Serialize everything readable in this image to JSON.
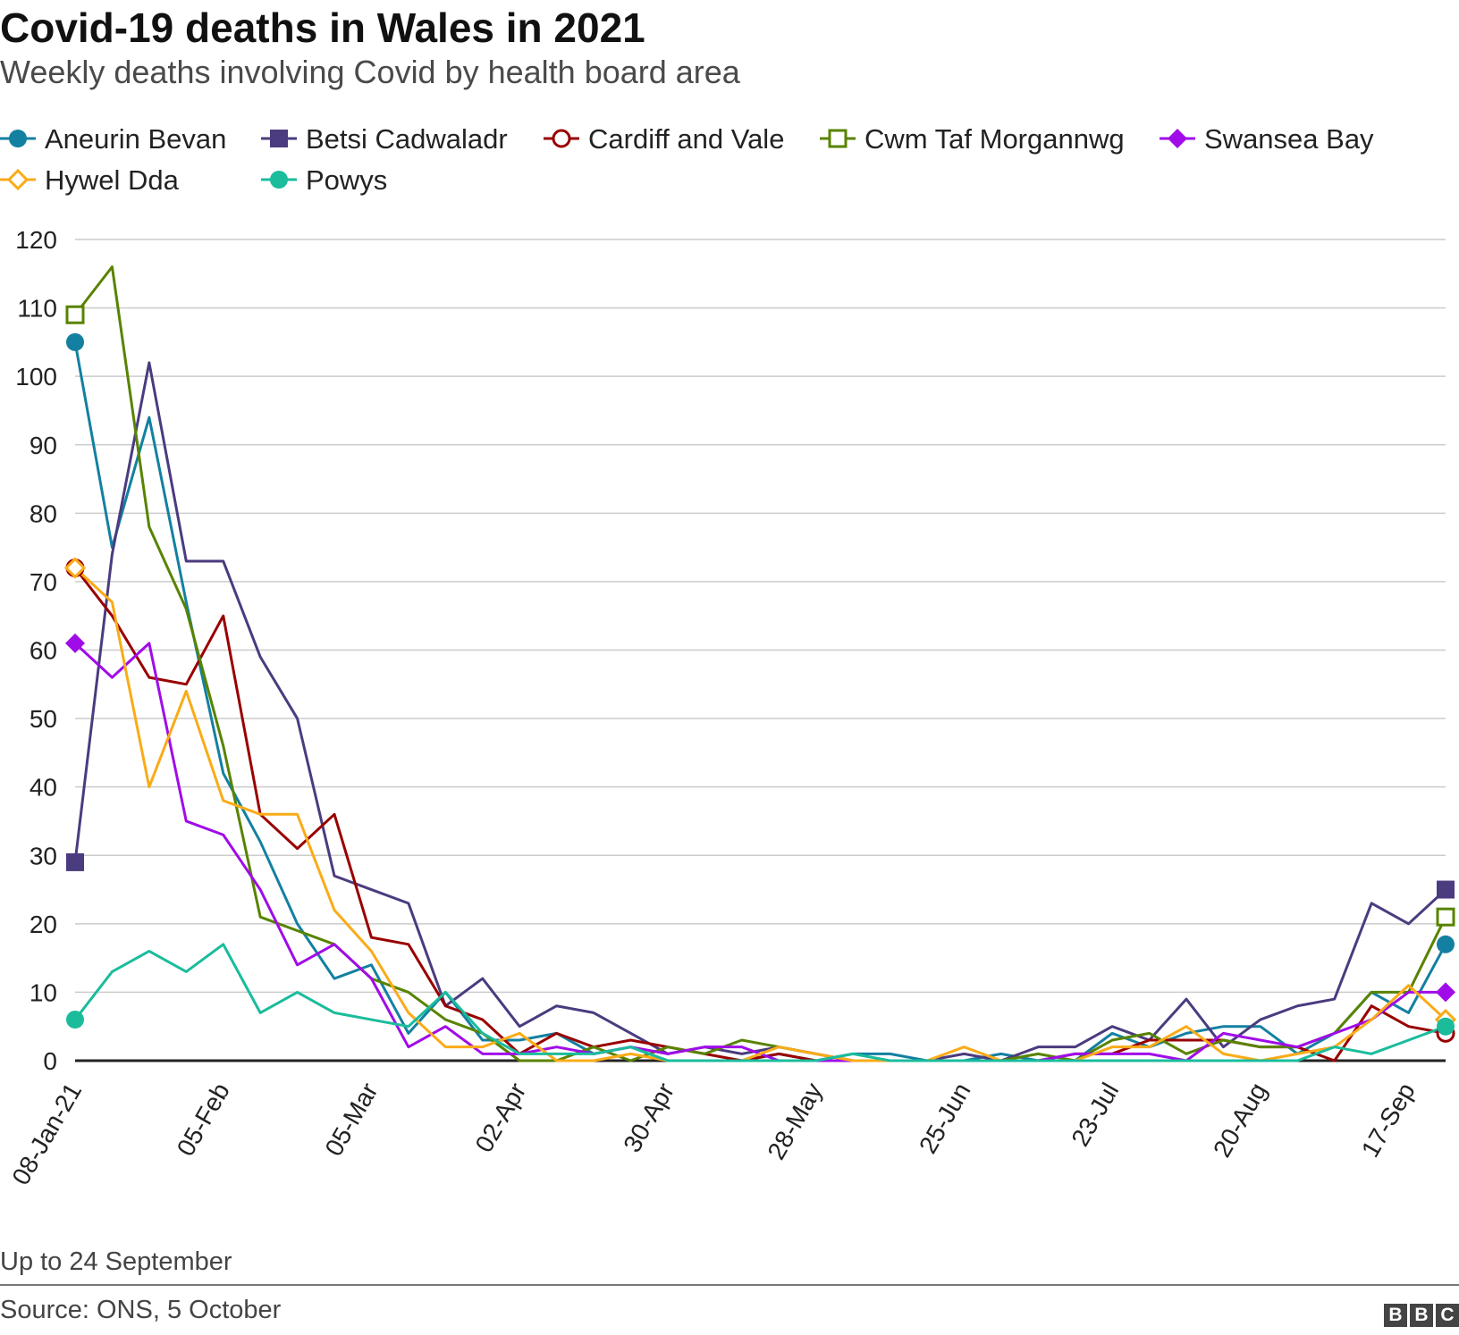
{
  "header": {
    "title": "Covid-19 deaths in Wales in 2021",
    "subtitle": "Weekly deaths involving Covid by health board area"
  },
  "footer": {
    "note": "Up to 24 September",
    "source": "Source: ONS, 5 October",
    "logo_letters": [
      "B",
      "B",
      "C"
    ]
  },
  "chart_data": {
    "type": "line",
    "title": "Covid-19 deaths in Wales in 2021",
    "subtitle": "Weekly deaths involving Covid by health board area",
    "xlabel": "",
    "ylabel": "",
    "ylim": [
      0,
      120
    ],
    "yticks": [
      0,
      10,
      20,
      30,
      40,
      50,
      60,
      70,
      80,
      90,
      100,
      110,
      120
    ],
    "grid": true,
    "legend_position": "top",
    "categories": [
      "08-Jan-21",
      "15-Jan",
      "22-Jan",
      "29-Jan",
      "05-Feb",
      "12-Feb",
      "19-Feb",
      "26-Feb",
      "05-Mar",
      "12-Mar",
      "19-Mar",
      "26-Mar",
      "02-Apr",
      "09-Apr",
      "16-Apr",
      "23-Apr",
      "30-Apr",
      "07-May",
      "14-May",
      "21-May",
      "28-May",
      "04-Jun",
      "11-Jun",
      "18-Jun",
      "25-Jun",
      "02-Jul",
      "09-Jul",
      "16-Jul",
      "23-Jul",
      "30-Jul",
      "06-Aug",
      "13-Aug",
      "20-Aug",
      "27-Aug",
      "03-Sep",
      "10-Sep",
      "17-Sep",
      "24-Sep"
    ],
    "xtick_labels": [
      {
        "index": 0,
        "label": "08-Jan-21"
      },
      {
        "index": 4,
        "label": "05-Feb"
      },
      {
        "index": 8,
        "label": "05-Mar"
      },
      {
        "index": 12,
        "label": "02-Apr"
      },
      {
        "index": 16,
        "label": "30-Apr"
      },
      {
        "index": 20,
        "label": "28-May"
      },
      {
        "index": 24,
        "label": "25-Jun"
      },
      {
        "index": 28,
        "label": "23-Jul"
      },
      {
        "index": 32,
        "label": "20-Aug"
      },
      {
        "index": 36,
        "label": "17-Sep"
      }
    ],
    "series": [
      {
        "name": "Aneurin Bevan",
        "color": "#1380A1",
        "marker": "circle",
        "values": [
          105,
          75,
          94,
          67,
          42,
          32,
          20,
          12,
          14,
          4,
          10,
          3,
          3,
          4,
          1,
          2,
          0,
          0,
          0,
          1,
          0,
          1,
          1,
          0,
          0,
          1,
          0,
          0,
          4,
          2,
          4,
          5,
          5,
          1,
          4,
          10,
          7,
          17
        ]
      },
      {
        "name": "Betsi Cadwaladr",
        "color": "#4B3B7F",
        "marker": "square",
        "values": [
          29,
          74,
          102,
          73,
          73,
          59,
          50,
          27,
          25,
          23,
          8,
          12,
          5,
          8,
          7,
          4,
          1,
          2,
          1,
          2,
          1,
          0,
          0,
          0,
          1,
          0,
          2,
          2,
          5,
          3,
          9,
          2,
          6,
          8,
          9,
          23,
          20,
          25
        ]
      },
      {
        "name": "Cardiff and Vale",
        "color": "#990000",
        "marker": "circle-open",
        "values": [
          72,
          65,
          56,
          55,
          65,
          36,
          31,
          36,
          18,
          17,
          8,
          6,
          1,
          4,
          2,
          3,
          2,
          1,
          0,
          1,
          0,
          0,
          0,
          0,
          0,
          0,
          0,
          1,
          1,
          3,
          3,
          3,
          2,
          2,
          0,
          8,
          5,
          4
        ]
      },
      {
        "name": "Cwm Taf Morgannwg",
        "color": "#588300",
        "marker": "square-open",
        "values": [
          109,
          116,
          78,
          66,
          46,
          21,
          19,
          17,
          12,
          10,
          6,
          4,
          0,
          0,
          2,
          0,
          2,
          1,
          3,
          2,
          1,
          0,
          0,
          0,
          0,
          0,
          1,
          0,
          3,
          4,
          1,
          3,
          2,
          2,
          4,
          10,
          10,
          21
        ]
      },
      {
        "name": "Swansea Bay",
        "color": "#A00CE8",
        "marker": "diamond",
        "values": [
          61,
          56,
          61,
          35,
          33,
          25,
          14,
          17,
          12,
          2,
          5,
          1,
          1,
          2,
          1,
          2,
          1,
          2,
          2,
          0,
          0,
          0,
          0,
          0,
          0,
          0,
          0,
          1,
          1,
          1,
          0,
          4,
          3,
          2,
          4,
          6,
          10,
          10
        ]
      },
      {
        "name": "Hywel Dda",
        "color": "#FAAB18",
        "marker": "diamond-open",
        "values": [
          72,
          67,
          40,
          54,
          38,
          36,
          36,
          22,
          16,
          7,
          2,
          2,
          4,
          0,
          0,
          1,
          0,
          0,
          0,
          2,
          1,
          0,
          0,
          0,
          2,
          0,
          0,
          0,
          2,
          2,
          5,
          1,
          0,
          1,
          2,
          6,
          11,
          6
        ]
      },
      {
        "name": "Powys",
        "color": "#1ABC9C",
        "marker": "circle",
        "values": [
          6,
          13,
          16,
          13,
          17,
          7,
          10,
          7,
          6,
          5,
          10,
          4,
          1,
          1,
          1,
          2,
          0,
          0,
          0,
          0,
          0,
          1,
          0,
          0,
          0,
          0,
          0,
          0,
          0,
          0,
          0,
          0,
          0,
          0,
          2,
          1,
          3,
          5
        ]
      }
    ]
  }
}
